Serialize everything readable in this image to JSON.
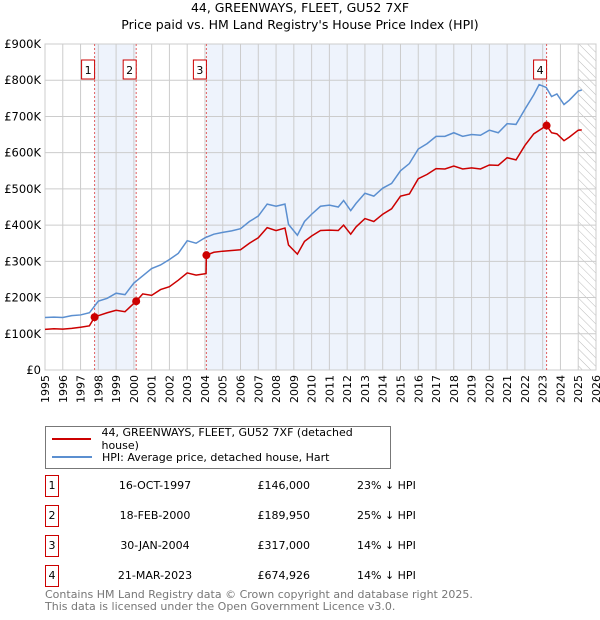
{
  "chart_data": {
    "type": "line",
    "title": "44, GREENWAYS, FLEET, GU52 7XF",
    "subtitle": "Price paid vs. HM Land Registry's House Price Index (HPI)",
    "xlim": [
      1995,
      2026
    ],
    "ylim": [
      0,
      900000
    ],
    "y_ticks": [
      {
        "v": 0,
        "label": "£0"
      },
      {
        "v": 100000,
        "label": "£100K"
      },
      {
        "v": 200000,
        "label": "£200K"
      },
      {
        "v": 300000,
        "label": "£300K"
      },
      {
        "v": 400000,
        "label": "£400K"
      },
      {
        "v": 500000,
        "label": "£500K"
      },
      {
        "v": 600000,
        "label": "£600K"
      },
      {
        "v": 700000,
        "label": "£700K"
      },
      {
        "v": 800000,
        "label": "£800K"
      },
      {
        "v": 900000,
        "label": "£900K"
      }
    ],
    "x_ticks": [
      "1995",
      "1996",
      "1997",
      "1998",
      "1999",
      "2000",
      "2001",
      "2002",
      "2003",
      "2004",
      "2005",
      "2006",
      "2007",
      "2008",
      "2009",
      "2010",
      "2011",
      "2012",
      "2013",
      "2014",
      "2015",
      "2016",
      "2017",
      "2018",
      "2019",
      "2020",
      "2021",
      "2022",
      "2023",
      "2024",
      "2025",
      "2026"
    ],
    "forecast_from": 2025.0,
    "grid": true,
    "series": [
      {
        "name": "44, GREENWAYS, FLEET, GU52 7XF (detached house)",
        "color": "#cc0000",
        "points": [
          [
            1995,
            112
          ],
          [
            1995.5,
            114
          ],
          [
            1996,
            113
          ],
          [
            1996.5,
            115
          ],
          [
            1997,
            118
          ],
          [
            1997.5,
            122
          ],
          [
            1997.79,
            146
          ],
          [
            1998,
            150
          ],
          [
            1998.5,
            158
          ],
          [
            1999,
            165
          ],
          [
            1999.5,
            161
          ],
          [
            2000.13,
            190
          ],
          [
            2000.5,
            210
          ],
          [
            2001,
            206
          ],
          [
            2001.5,
            222
          ],
          [
            2002,
            230
          ],
          [
            2002.5,
            248
          ],
          [
            2003,
            268
          ],
          [
            2003.5,
            262
          ],
          [
            2004.06,
            266
          ],
          [
            2004.08,
            317
          ],
          [
            2004.5,
            325
          ],
          [
            2005,
            328
          ],
          [
            2005.5,
            330
          ],
          [
            2006,
            332
          ],
          [
            2006.5,
            350
          ],
          [
            2007,
            365
          ],
          [
            2007.5,
            393
          ],
          [
            2008,
            385
          ],
          [
            2008.5,
            392
          ],
          [
            2008.7,
            345
          ],
          [
            2009.2,
            320
          ],
          [
            2009.6,
            355
          ],
          [
            2010,
            370
          ],
          [
            2010.5,
            385
          ],
          [
            2011,
            386
          ],
          [
            2011.5,
            385
          ],
          [
            2011.8,
            400
          ],
          [
            2012.2,
            375
          ],
          [
            2012.5,
            395
          ],
          [
            2013,
            418
          ],
          [
            2013.5,
            410
          ],
          [
            2014,
            430
          ],
          [
            2014.5,
            445
          ],
          [
            2015,
            480
          ],
          [
            2015.5,
            486
          ],
          [
            2016,
            528
          ],
          [
            2016.5,
            540
          ],
          [
            2017,
            556
          ],
          [
            2017.5,
            555
          ],
          [
            2018,
            563
          ],
          [
            2018.5,
            555
          ],
          [
            2019,
            558
          ],
          [
            2019.5,
            555
          ],
          [
            2020,
            566
          ],
          [
            2020.5,
            565
          ],
          [
            2021,
            586
          ],
          [
            2021.5,
            580
          ],
          [
            2022,
            620
          ],
          [
            2022.5,
            652
          ],
          [
            2023.22,
            675
          ],
          [
            2023.5,
            655
          ],
          [
            2023.8,
            652
          ],
          [
            2024.2,
            633
          ],
          [
            2024.5,
            643
          ],
          [
            2025,
            662
          ],
          [
            2025.2,
            663
          ]
        ]
      },
      {
        "name": "HPI: Average price, detached house, Hart",
        "color": "#5b8fd0",
        "points": [
          [
            1995,
            145
          ],
          [
            1995.5,
            146
          ],
          [
            1996,
            145
          ],
          [
            1996.5,
            150
          ],
          [
            1997,
            152
          ],
          [
            1997.5,
            158
          ],
          [
            1998,
            190
          ],
          [
            1998.5,
            198
          ],
          [
            1999,
            212
          ],
          [
            1999.5,
            208
          ],
          [
            2000,
            240
          ],
          [
            2000.5,
            260
          ],
          [
            2001,
            280
          ],
          [
            2001.5,
            290
          ],
          [
            2002,
            305
          ],
          [
            2002.5,
            322
          ],
          [
            2003,
            357
          ],
          [
            2003.5,
            350
          ],
          [
            2004,
            365
          ],
          [
            2004.5,
            375
          ],
          [
            2005,
            380
          ],
          [
            2005.5,
            384
          ],
          [
            2006,
            390
          ],
          [
            2006.5,
            410
          ],
          [
            2007,
            425
          ],
          [
            2007.5,
            458
          ],
          [
            2008,
            452
          ],
          [
            2008.5,
            458
          ],
          [
            2008.7,
            402
          ],
          [
            2009.2,
            372
          ],
          [
            2009.6,
            410
          ],
          [
            2010,
            430
          ],
          [
            2010.5,
            452
          ],
          [
            2011,
            455
          ],
          [
            2011.5,
            450
          ],
          [
            2011.8,
            468
          ],
          [
            2012.2,
            440
          ],
          [
            2012.5,
            460
          ],
          [
            2013,
            488
          ],
          [
            2013.5,
            480
          ],
          [
            2014,
            502
          ],
          [
            2014.5,
            515
          ],
          [
            2015,
            550
          ],
          [
            2015.5,
            570
          ],
          [
            2016,
            610
          ],
          [
            2016.5,
            625
          ],
          [
            2017,
            645
          ],
          [
            2017.5,
            645
          ],
          [
            2018,
            655
          ],
          [
            2018.5,
            645
          ],
          [
            2019,
            650
          ],
          [
            2019.5,
            648
          ],
          [
            2020,
            662
          ],
          [
            2020.5,
            655
          ],
          [
            2021,
            680
          ],
          [
            2021.5,
            678
          ],
          [
            2022,
            720
          ],
          [
            2022.5,
            760
          ],
          [
            2022.8,
            788
          ],
          [
            2023.2,
            780
          ],
          [
            2023.5,
            755
          ],
          [
            2023.8,
            762
          ],
          [
            2024.2,
            733
          ],
          [
            2024.5,
            745
          ],
          [
            2025,
            770
          ],
          [
            2025.2,
            773
          ]
        ]
      }
    ],
    "sales": [
      {
        "label": "1",
        "year": 1997.79,
        "date": "16-OCT-1997",
        "price_value": 146,
        "price": "£146,000",
        "hpi": "23% ↓ HPI"
      },
      {
        "label": "2",
        "year": 2000.13,
        "date": "18-FEB-2000",
        "price_value": 189.95,
        "price": "£189,950",
        "hpi": "25% ↓ HPI"
      },
      {
        "label": "3",
        "year": 2004.08,
        "date": "30-JAN-2004",
        "price_value": 317,
        "price": "£317,000",
        "hpi": "14% ↓ HPI"
      },
      {
        "label": "4",
        "year": 2023.22,
        "date": "21-MAR-2023",
        "price_value": 674.926,
        "price": "£674,926",
        "hpi": "14% ↓ HPI"
      }
    ],
    "points_unit": "£ thousands"
  },
  "footer": {
    "line1": "Contains HM Land Registry data © Crown copyright and database right 2025.",
    "line2": "This data is licensed under the Open Government Licence v3.0."
  }
}
